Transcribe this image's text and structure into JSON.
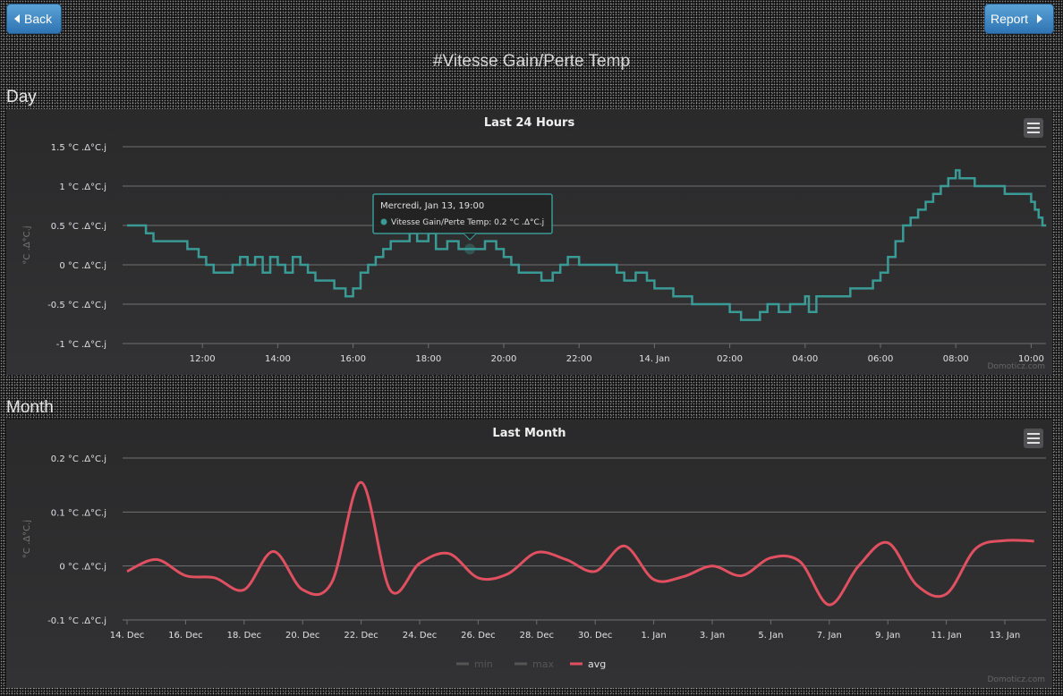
{
  "nav": {
    "back_label": "Back",
    "report_label": "Report"
  },
  "page_title": "#Vitesse Gain/Perte Temp",
  "sections": {
    "day_label": "Day",
    "month_label": "Month"
  },
  "colors": {
    "day_series": "#3a9a95",
    "month_avg": "#e05060",
    "button": "#3a86c4"
  },
  "chart_data": [
    {
      "type": "line",
      "title": "Last 24 Hours",
      "ylabel": "°C .Δ°C.j",
      "ylim": [
        -1,
        1.5
      ],
      "yticks": [
        {
          "v": 1.5,
          "label": "1.5 °C .Δ°C.j"
        },
        {
          "v": 1,
          "label": "1 °C .Δ°C.j"
        },
        {
          "v": 0.5,
          "label": "0.5 °C .Δ°C.j"
        },
        {
          "v": 0,
          "label": "0 °C .Δ°C.j"
        },
        {
          "v": -0.5,
          "label": "-0.5 °C .Δ°C.j"
        },
        {
          "v": -1,
          "label": "-1 °C .Δ°C.j"
        }
      ],
      "x_start_hour": 10,
      "x_end_hour": 34.4,
      "xticks": [
        {
          "h": 12,
          "label": "12:00"
        },
        {
          "h": 14,
          "label": "14:00"
        },
        {
          "h": 16,
          "label": "16:00"
        },
        {
          "h": 18,
          "label": "18:00"
        },
        {
          "h": 20,
          "label": "20:00"
        },
        {
          "h": 22,
          "label": "22:00"
        },
        {
          "h": 24,
          "label": "14. Jan"
        },
        {
          "h": 26,
          "label": "02:00"
        },
        {
          "h": 28,
          "label": "04:00"
        },
        {
          "h": 30,
          "label": "06:00"
        },
        {
          "h": 32,
          "label": "08:00"
        },
        {
          "h": 34,
          "label": "10:00"
        }
      ],
      "series": [
        {
          "name": "Vitesse Gain/Perte Temp",
          "points": [
            [
              10.0,
              0.5
            ],
            [
              10.3,
              0.5
            ],
            [
              10.5,
              0.4
            ],
            [
              10.7,
              0.3
            ],
            [
              11.0,
              0.3
            ],
            [
              11.3,
              0.3
            ],
            [
              11.6,
              0.2
            ],
            [
              11.9,
              0.1
            ],
            [
              12.1,
              0.0
            ],
            [
              12.3,
              -0.1
            ],
            [
              12.5,
              -0.1
            ],
            [
              12.8,
              0.0
            ],
            [
              13.0,
              0.1
            ],
            [
              13.2,
              0.0
            ],
            [
              13.4,
              0.1
            ],
            [
              13.6,
              -0.1
            ],
            [
              13.8,
              0.1
            ],
            [
              14.0,
              0.0
            ],
            [
              14.2,
              -0.1
            ],
            [
              14.4,
              0.1
            ],
            [
              14.6,
              0.0
            ],
            [
              14.8,
              -0.1
            ],
            [
              15.0,
              -0.2
            ],
            [
              15.2,
              -0.2
            ],
            [
              15.5,
              -0.3
            ],
            [
              15.8,
              -0.4
            ],
            [
              16.0,
              -0.3
            ],
            [
              16.2,
              -0.1
            ],
            [
              16.4,
              0.0
            ],
            [
              16.6,
              0.1
            ],
            [
              16.8,
              0.2
            ],
            [
              17.0,
              0.3
            ],
            [
              17.3,
              0.3
            ],
            [
              17.5,
              0.4
            ],
            [
              17.7,
              0.3
            ],
            [
              17.9,
              0.3
            ],
            [
              18.0,
              0.4
            ],
            [
              18.2,
              0.2
            ],
            [
              18.5,
              0.3
            ],
            [
              18.8,
              0.2
            ],
            [
              19.0,
              0.2
            ],
            [
              19.3,
              0.2
            ],
            [
              19.5,
              0.3
            ],
            [
              19.8,
              0.2
            ],
            [
              20.0,
              0.1
            ],
            [
              20.2,
              0.0
            ],
            [
              20.4,
              -0.1
            ],
            [
              20.6,
              -0.1
            ],
            [
              21.0,
              -0.2
            ],
            [
              21.3,
              -0.1
            ],
            [
              21.5,
              0.0
            ],
            [
              21.7,
              0.1
            ],
            [
              22.0,
              0.0
            ],
            [
              22.5,
              0.0
            ],
            [
              23.0,
              -0.1
            ],
            [
              23.2,
              -0.2
            ],
            [
              23.5,
              -0.1
            ],
            [
              23.8,
              -0.2
            ],
            [
              24.0,
              -0.3
            ],
            [
              24.5,
              -0.4
            ],
            [
              25.0,
              -0.5
            ],
            [
              25.5,
              -0.5
            ],
            [
              26.0,
              -0.6
            ],
            [
              26.3,
              -0.7
            ],
            [
              26.6,
              -0.7
            ],
            [
              26.8,
              -0.6
            ],
            [
              27.0,
              -0.5
            ],
            [
              27.3,
              -0.6
            ],
            [
              27.6,
              -0.5
            ],
            [
              27.8,
              -0.5
            ],
            [
              28.0,
              -0.4
            ],
            [
              28.1,
              -0.6
            ],
            [
              28.3,
              -0.4
            ],
            [
              28.5,
              -0.4
            ],
            [
              28.9,
              -0.4
            ],
            [
              29.2,
              -0.3
            ],
            [
              29.5,
              -0.3
            ],
            [
              29.8,
              -0.2
            ],
            [
              30.0,
              -0.1
            ],
            [
              30.2,
              0.1
            ],
            [
              30.4,
              0.3
            ],
            [
              30.6,
              0.5
            ],
            [
              30.8,
              0.6
            ],
            [
              31.0,
              0.7
            ],
            [
              31.2,
              0.8
            ],
            [
              31.4,
              0.9
            ],
            [
              31.6,
              1.0
            ],
            [
              31.8,
              1.1
            ],
            [
              32.0,
              1.2
            ],
            [
              32.1,
              1.1
            ],
            [
              32.5,
              1.0
            ],
            [
              33.0,
              1.0
            ],
            [
              33.3,
              0.9
            ],
            [
              33.6,
              0.9
            ],
            [
              33.9,
              0.9
            ],
            [
              34.0,
              0.8
            ],
            [
              34.1,
              0.7
            ],
            [
              34.2,
              0.6
            ],
            [
              34.3,
              0.5
            ],
            [
              34.4,
              0.5
            ]
          ]
        }
      ],
      "tooltip": {
        "hour": 19.1,
        "value": 0.2,
        "header": "Mercredi, Jan 13, 19:00",
        "line": "Vitesse Gain/Perte Temp: 0.2 °C .Δ°C.j"
      },
      "credit": "Domoticz.com"
    },
    {
      "type": "line",
      "title": "Last Month",
      "ylabel": "°C .Δ°C.j",
      "ylim": [
        -0.1,
        0.2
      ],
      "yticks": [
        {
          "v": 0.2,
          "label": "0.2 °C .Δ°C.j"
        },
        {
          "v": 0.1,
          "label": "0.1 °C .Δ°C.j"
        },
        {
          "v": 0,
          "label": "0 °C .Δ°C.j"
        },
        {
          "v": -0.1,
          "label": "-0.1 °C .Δ°C.j"
        }
      ],
      "x_start_day": 0,
      "x_end_day": 31,
      "xticks": [
        {
          "d": 0,
          "label": "14. Dec"
        },
        {
          "d": 2,
          "label": "16. Dec"
        },
        {
          "d": 4,
          "label": "18. Dec"
        },
        {
          "d": 6,
          "label": "20. Dec"
        },
        {
          "d": 8,
          "label": "22. Dec"
        },
        {
          "d": 10,
          "label": "24. Dec"
        },
        {
          "d": 12,
          "label": "26. Dec"
        },
        {
          "d": 14,
          "label": "28. Dec"
        },
        {
          "d": 16,
          "label": "30. Dec"
        },
        {
          "d": 18,
          "label": "1. Jan"
        },
        {
          "d": 20,
          "label": "3. Jan"
        },
        {
          "d": 22,
          "label": "5. Jan"
        },
        {
          "d": 24,
          "label": "7. Jan"
        },
        {
          "d": 26,
          "label": "9. Jan"
        },
        {
          "d": 28,
          "label": "11. Jan"
        },
        {
          "d": 30,
          "label": "13. Jan"
        }
      ],
      "series": [
        {
          "name": "min",
          "visible": false,
          "values": []
        },
        {
          "name": "max",
          "visible": false,
          "values": []
        },
        {
          "name": "avg",
          "visible": true,
          "values": [
            -0.01,
            0.012,
            -0.018,
            -0.022,
            -0.044,
            0.027,
            -0.044,
            -0.03,
            0.155,
            -0.045,
            0.005,
            0.023,
            -0.022,
            -0.015,
            0.025,
            0.012,
            -0.01,
            0.037,
            -0.025,
            -0.02,
            0.0,
            -0.018,
            0.015,
            0.008,
            -0.072,
            0.0,
            0.043,
            -0.036,
            -0.052,
            0.032,
            0.047,
            0.046
          ]
        }
      ],
      "legend": [
        "min",
        "max",
        "avg"
      ],
      "credit": "Domoticz.com"
    }
  ]
}
